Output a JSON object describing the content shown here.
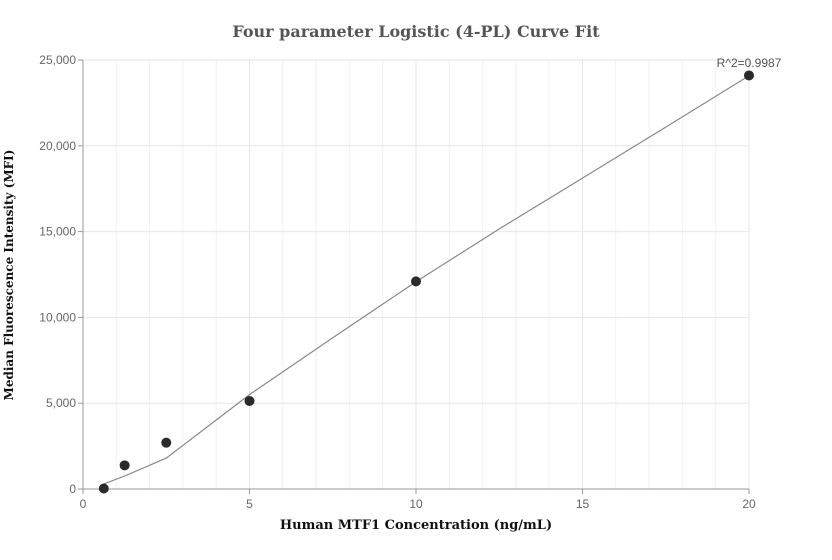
{
  "chart_data": {
    "type": "scatter",
    "title": "Four parameter Logistic (4-PL) Curve Fit",
    "xlabel": "Human MTF1 Concentration (ng/mL)",
    "ylabel": "Median Fluorescence Intensity (MFI)",
    "xlim": [
      0,
      20
    ],
    "ylim": [
      0,
      25000
    ],
    "x_ticks": [
      0,
      5,
      10,
      15,
      20
    ],
    "x_tick_labels": [
      "0",
      "5",
      "10",
      "15",
      "20"
    ],
    "y_ticks": [
      0,
      5000,
      10000,
      15000,
      20000,
      25000
    ],
    "y_tick_labels": [
      "0",
      "5,000",
      "10,000",
      "15,000",
      "20,000",
      "25,000"
    ],
    "grid": true,
    "annotation": "R^2=0.9987",
    "series": [
      {
        "points": [
          {
            "x": 0.625,
            "y": 30
          },
          {
            "x": 1.25,
            "y": 1380
          },
          {
            "x": 2.5,
            "y": 2700
          },
          {
            "x": 5,
            "y": 5130
          },
          {
            "x": 10,
            "y": 12100
          },
          {
            "x": 20,
            "y": 24100
          }
        ]
      }
    ],
    "fit_curve": {
      "x": [
        0.625,
        1.25,
        2.5,
        5,
        7.5,
        10,
        12.5,
        15,
        17.5,
        20
      ],
      "y": [
        300,
        760,
        1800,
        5500,
        8810,
        12080,
        15160,
        18120,
        21090,
        24080
      ]
    },
    "colors": {
      "point": "#2b2b2b",
      "curve": "#888888",
      "grid": "#e6e6ee",
      "axis": "#999999"
    }
  }
}
